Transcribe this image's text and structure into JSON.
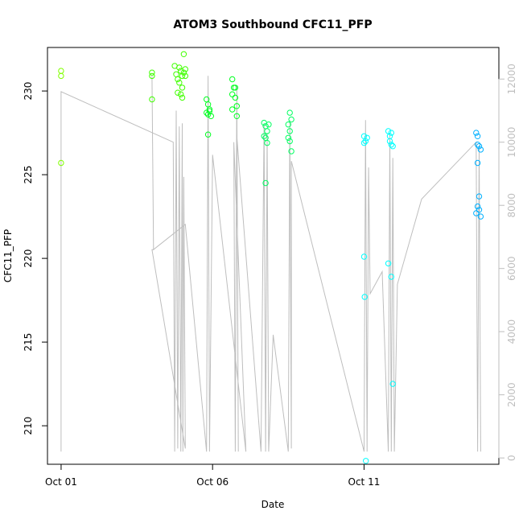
{
  "chart_data": {
    "type": "scatter",
    "title": "ATOM3 Southbound CFC11_PFP",
    "xlabel": "Date",
    "ylabel": "CFC11_PFP",
    "x_ticks": [
      "Oct 01",
      "Oct 06",
      "Oct 11"
    ],
    "x_range_days": [
      -0.45,
      14.45
    ],
    "y_left_range": [
      207.7,
      232.6
    ],
    "y_left_ticks": [
      210,
      215,
      220,
      225,
      230
    ],
    "y_right_range": [
      -200,
      13000
    ],
    "y_right_ticks": [
      0,
      2000,
      4000,
      6000,
      8000,
      10000,
      12000
    ],
    "y_right_tick_labels": [
      "0",
      "2000",
      "4000",
      "6000",
      "8000",
      "10000",
      "12000"
    ],
    "colors": {
      "altitude_line": "#bebebe",
      "axis": "#000000",
      "right_axis": "#bebebe"
    },
    "series": [
      {
        "color": "#80ff00",
        "points": [
          [
            0.0,
            231.2
          ],
          [
            0.0,
            230.9
          ],
          [
            0.0,
            225.7
          ]
        ]
      },
      {
        "color": "#40ff00",
        "points": [
          [
            3.0,
            231.1
          ],
          [
            3.0,
            230.9
          ],
          [
            3.0,
            229.5
          ],
          [
            3.75,
            231.5
          ],
          [
            3.8,
            231.0
          ],
          [
            3.85,
            230.7
          ],
          [
            3.9,
            231.4
          ],
          [
            3.95,
            231.2
          ],
          [
            4.0,
            230.9
          ],
          [
            3.9,
            230.5
          ],
          [
            3.95,
            229.8
          ],
          [
            4.0,
            230.2
          ],
          [
            3.85,
            229.9
          ],
          [
            4.05,
            231.1
          ],
          [
            4.05,
            232.2
          ],
          [
            4.0,
            229.6
          ],
          [
            4.1,
            230.9
          ],
          [
            4.1,
            231.3
          ]
        ]
      },
      {
        "color": "#00ff20",
        "points": [
          [
            4.8,
            229.5
          ],
          [
            4.85,
            229.2
          ],
          [
            4.8,
            228.7
          ],
          [
            4.85,
            228.6
          ],
          [
            4.9,
            228.8
          ],
          [
            4.95,
            228.5
          ],
          [
            4.85,
            227.4
          ],
          [
            4.9,
            228.9
          ],
          [
            5.65,
            230.7
          ],
          [
            5.7,
            230.2
          ],
          [
            5.65,
            229.8
          ],
          [
            5.75,
            229.6
          ],
          [
            5.8,
            229.1
          ],
          [
            5.75,
            230.2
          ],
          [
            5.65,
            228.9
          ],
          [
            5.8,
            228.5
          ]
        ]
      },
      {
        "color": "#00ff60",
        "points": [
          [
            6.7,
            228.1
          ],
          [
            6.75,
            227.9
          ],
          [
            6.8,
            227.6
          ],
          [
            6.7,
            227.3
          ],
          [
            6.75,
            227.2
          ],
          [
            6.85,
            228.0
          ],
          [
            6.8,
            226.9
          ],
          [
            6.75,
            224.5
          ],
          [
            7.55,
            228.7
          ],
          [
            7.6,
            228.3
          ],
          [
            7.5,
            228.0
          ],
          [
            7.55,
            227.6
          ],
          [
            7.5,
            227.2
          ],
          [
            7.55,
            227.0
          ],
          [
            7.6,
            226.4
          ]
        ]
      },
      {
        "color": "#00ffff",
        "points": [
          [
            10.0,
            227.3
          ],
          [
            10.05,
            227.0
          ],
          [
            10.0,
            226.9
          ],
          [
            10.1,
            227.2
          ],
          [
            10.0,
            220.1
          ],
          [
            10.02,
            217.7
          ],
          [
            10.06,
            207.9
          ],
          [
            10.8,
            227.6
          ],
          [
            10.85,
            227.3
          ],
          [
            10.9,
            227.5
          ],
          [
            10.85,
            227.0
          ],
          [
            10.9,
            226.8
          ],
          [
            10.95,
            226.7
          ],
          [
            10.8,
            219.7
          ],
          [
            10.9,
            218.9
          ],
          [
            10.95,
            212.5
          ]
        ]
      },
      {
        "color": "#00b0ff",
        "points": [
          [
            13.7,
            227.5
          ],
          [
            13.75,
            226.8
          ],
          [
            13.8,
            226.7
          ],
          [
            13.85,
            226.5
          ],
          [
            13.75,
            225.7
          ],
          [
            13.8,
            223.7
          ],
          [
            13.75,
            223.1
          ],
          [
            13.7,
            222.7
          ],
          [
            13.8,
            222.9
          ],
          [
            13.85,
            222.5
          ],
          [
            13.75,
            227.3
          ]
        ]
      }
    ],
    "altitude_line": [
      [
        0.0,
        200
      ],
      [
        0.0,
        11600
      ],
      [
        3.7,
        10000
      ],
      [
        3.75,
        200
      ],
      [
        3.8,
        11000
      ],
      [
        3.85,
        300
      ],
      [
        3.9,
        10500
      ],
      [
        3.95,
        200
      ],
      [
        4.0,
        10600
      ],
      [
        4.02,
        200
      ],
      [
        4.05,
        8900
      ],
      [
        4.1,
        300
      ],
      [
        3.0,
        6600
      ],
      [
        3.05,
        6600
      ],
      [
        3.0,
        12100
      ],
      [
        3.05,
        6600
      ],
      [
        4.1,
        7400
      ],
      [
        4.8,
        200
      ],
      [
        4.85,
        12100
      ],
      [
        4.9,
        200
      ],
      [
        5.0,
        9600
      ],
      [
        6.1,
        200
      ],
      [
        5.7,
        10000
      ],
      [
        5.75,
        200
      ],
      [
        5.8,
        11800
      ],
      [
        5.85,
        200
      ],
      [
        5.8,
        10200
      ],
      [
        6.6,
        200
      ],
      [
        6.7,
        10600
      ],
      [
        6.75,
        200
      ],
      [
        6.8,
        10300
      ],
      [
        6.85,
        200
      ],
      [
        7.0,
        3900
      ],
      [
        7.5,
        200
      ],
      [
        7.55,
        10700
      ],
      [
        7.6,
        300
      ],
      [
        7.6,
        9400
      ],
      [
        10.0,
        200
      ],
      [
        10.05,
        10700
      ],
      [
        10.1,
        200
      ],
      [
        10.15,
        9200
      ],
      [
        10.2,
        5200
      ],
      [
        10.6,
        5900
      ],
      [
        10.8,
        200
      ],
      [
        10.85,
        10300
      ],
      [
        10.9,
        200
      ],
      [
        10.95,
        9500
      ],
      [
        11.0,
        200
      ],
      [
        11.1,
        5500
      ],
      [
        11.9,
        8200
      ],
      [
        13.0,
        9300
      ],
      [
        13.7,
        10000
      ],
      [
        13.75,
        200
      ],
      [
        13.8,
        9900
      ],
      [
        13.85,
        200
      ]
    ]
  }
}
